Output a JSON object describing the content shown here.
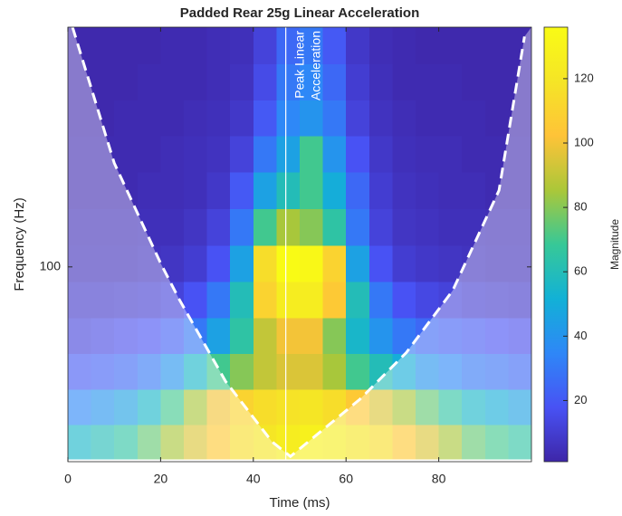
{
  "chart_data": {
    "type": "heatmap",
    "title": "Padded Rear 25g Linear Acceleration",
    "x_label": "Time (ms)",
    "y_label": "Frequency (Hz)",
    "colorbar_label": "Magnitude",
    "colormap": "parula",
    "clim": [
      1,
      136
    ],
    "colorbar_ticks": [
      20,
      40,
      60,
      80,
      100,
      120
    ],
    "xlim": [
      0,
      100
    ],
    "xticks": [
      0,
      20,
      40,
      60,
      80
    ],
    "ylim": [
      35,
      364
    ],
    "yticks": [
      100
    ],
    "yscale": "log",
    "x": [
      2.5,
      7.5,
      12.5,
      17.5,
      22.5,
      27.5,
      32.5,
      37.5,
      42.5,
      47.5,
      52.5,
      57.5,
      62.5,
      67.5,
      72.5,
      77.5,
      82.5,
      87.5,
      92.5,
      97.5
    ],
    "y": [
      39,
      47,
      57,
      69,
      84,
      102,
      124,
      151,
      184,
      223,
      271,
      330
    ],
    "z": [
      [
        55,
        60,
        65,
        75,
        85,
        95,
        105,
        115,
        120,
        125,
        128,
        125,
        120,
        115,
        105,
        95,
        85,
        75,
        70,
        65
      ],
      [
        35,
        40,
        45,
        55,
        70,
        85,
        100,
        110,
        115,
        118,
        120,
        115,
        105,
        95,
        85,
        75,
        65,
        55,
        50,
        45
      ],
      [
        20,
        22,
        25,
        30,
        40,
        55,
        70,
        80,
        90,
        95,
        95,
        85,
        70,
        60,
        50,
        40,
        35,
        30,
        28,
        25
      ],
      [
        12,
        14,
        16,
        18,
        22,
        30,
        45,
        65,
        90,
        100,
        100,
        80,
        55,
        40,
        30,
        25,
        22,
        20,
        18,
        16
      ],
      [
        8,
        8,
        9,
        10,
        12,
        18,
        30,
        60,
        110,
        125,
        125,
        105,
        60,
        30,
        18,
        14,
        12,
        10,
        9,
        8
      ],
      [
        5,
        5,
        5,
        6,
        7,
        10,
        18,
        45,
        115,
        136,
        134,
        110,
        45,
        18,
        10,
        8,
        7,
        6,
        5,
        5
      ],
      [
        4,
        4,
        4,
        5,
        5,
        7,
        12,
        30,
        70,
        85,
        80,
        65,
        30,
        12,
        7,
        6,
        5,
        5,
        4,
        4
      ],
      [
        3,
        3,
        3,
        4,
        4,
        5,
        8,
        20,
        45,
        60,
        70,
        50,
        25,
        10,
        6,
        5,
        4,
        4,
        3,
        3
      ],
      [
        3,
        3,
        3,
        3,
        4,
        5,
        6,
        12,
        30,
        45,
        70,
        40,
        18,
        8,
        5,
        4,
        4,
        3,
        3,
        3
      ],
      [
        2,
        2,
        3,
        3,
        3,
        4,
        5,
        8,
        20,
        35,
        40,
        30,
        12,
        6,
        4,
        3,
        3,
        3,
        2,
        2
      ],
      [
        2,
        2,
        2,
        3,
        3,
        3,
        4,
        6,
        15,
        30,
        35,
        25,
        10,
        5,
        3,
        3,
        3,
        2,
        2,
        2
      ],
      [
        2,
        2,
        2,
        2,
        3,
        3,
        4,
        5,
        12,
        25,
        30,
        20,
        8,
        4,
        3,
        2,
        2,
        2,
        2,
        2
      ]
    ],
    "coi": {
      "x": [
        1,
        10,
        20,
        24,
        34,
        44,
        48,
        63,
        73,
        83,
        93,
        98.5
      ],
      "values": [
        364,
        175,
        102,
        84,
        54,
        39,
        36,
        49,
        63,
        88,
        151,
        346
      ]
    },
    "annotation": {
      "x": 47,
      "lines": [
        "Peak Linear",
        "Acceleration"
      ]
    }
  }
}
